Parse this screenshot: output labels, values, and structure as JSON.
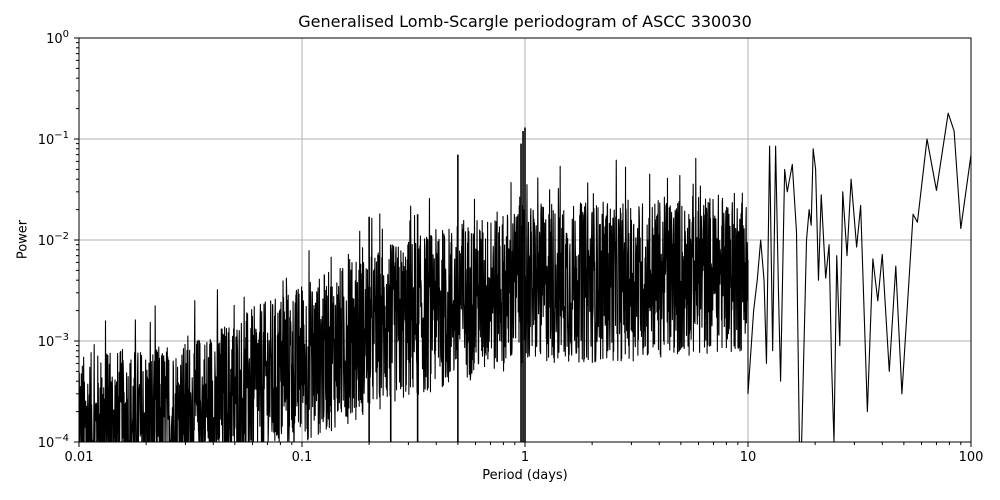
{
  "chart_data": {
    "type": "line",
    "title": "Generalised Lomb-Scargle periodogram of ASCC 330030",
    "xlabel": "Period (days)",
    "ylabel": "Power",
    "xscale": "log",
    "yscale": "log",
    "xlim": [
      0.01,
      100
    ],
    "ylim": [
      0.0001,
      1
    ],
    "grid": true,
    "x_ticks": [
      "0.01",
      "0.1",
      "1",
      "10",
      "100"
    ],
    "y_ticks": [
      {
        "base": "10",
        "exp": "0",
        "value": 1
      },
      {
        "base": "10",
        "exp": "−1",
        "value": 0.1
      },
      {
        "base": "10",
        "exp": "−2",
        "value": 0.01
      },
      {
        "base": "10",
        "exp": "−3",
        "value": 0.001
      },
      {
        "base": "10",
        "exp": "−4",
        "value": 0.0001
      }
    ],
    "line_color": "#000000",
    "grid_color": "#b0b0b0",
    "noise_envelope": [
      {
        "period": 0.01,
        "power": 0.0003
      },
      {
        "period": 0.03,
        "power": 0.0004
      },
      {
        "period": 0.1,
        "power": 0.0015
      },
      {
        "period": 0.2,
        "power": 0.003
      },
      {
        "period": 0.5,
        "power": 0.006
      },
      {
        "period": 1.0,
        "power": 0.009
      },
      {
        "period": 3.0,
        "power": 0.01
      },
      {
        "period": 8.0,
        "power": 0.012
      }
    ],
    "notable_peaks": [
      {
        "period": 0.2,
        "power": 0.017
      },
      {
        "period": 0.25,
        "power": 0.009
      },
      {
        "period": 0.33,
        "power": 0.018
      },
      {
        "period": 0.5,
        "power": 0.07
      },
      {
        "period": 0.98,
        "power": 0.12
      },
      {
        "period": 1.0,
        "power": 0.13
      },
      {
        "period": 0.96,
        "power": 0.09
      },
      {
        "period": 12.5,
        "power": 0.085
      },
      {
        "period": 13.3,
        "power": 0.085
      },
      {
        "period": 15.0,
        "power": 0.05
      },
      {
        "period": 15.8,
        "power": 0.056
      },
      {
        "period": 19.5,
        "power": 0.08
      },
      {
        "period": 21.3,
        "power": 0.028
      },
      {
        "period": 26.5,
        "power": 0.03
      },
      {
        "period": 29.0,
        "power": 0.04
      },
      {
        "period": 32.0,
        "power": 0.022
      },
      {
        "period": 38.0,
        "power": 0.007
      },
      {
        "period": 41.5,
        "power": 0.007
      },
      {
        "period": 46.0,
        "power": 0.0055
      },
      {
        "period": 55.0,
        "power": 0.018
      },
      {
        "period": 64.0,
        "power": 0.1
      },
      {
        "period": 79.0,
        "power": 0.18
      },
      {
        "period": 100.0,
        "power": 0.07
      }
    ],
    "long_period_curve": [
      [
        10.0,
        0.0003
      ],
      [
        10.6,
        0.002
      ],
      [
        11.0,
        0.004
      ],
      [
        11.4,
        0.01
      ],
      [
        11.8,
        0.004
      ],
      [
        12.1,
        0.0006
      ],
      [
        12.5,
        0.085
      ],
      [
        12.9,
        0.0008
      ],
      [
        13.3,
        0.085
      ],
      [
        13.7,
        0.003
      ],
      [
        14.0,
        0.0004
      ],
      [
        14.6,
        0.05
      ],
      [
        15.0,
        0.03
      ],
      [
        15.8,
        0.056
      ],
      [
        16.5,
        0.012
      ],
      [
        17.0,
        0.0001
      ],
      [
        17.4,
        0.0001
      ],
      [
        18.3,
        0.01
      ],
      [
        18.8,
        0.02
      ],
      [
        19.2,
        0.014
      ],
      [
        19.6,
        0.08
      ],
      [
        20.1,
        0.05
      ],
      [
        20.7,
        0.004
      ],
      [
        21.3,
        0.028
      ],
      [
        22.3,
        0.0042
      ],
      [
        23.1,
        0.009
      ],
      [
        23.7,
        0.0006
      ],
      [
        24.3,
        0.0001
      ],
      [
        25.0,
        0.007
      ],
      [
        25.8,
        0.0009
      ],
      [
        26.6,
        0.03
      ],
      [
        27.8,
        0.007
      ],
      [
        29.0,
        0.04
      ],
      [
        30.7,
        0.0085
      ],
      [
        32.0,
        0.022
      ],
      [
        34.3,
        0.0002
      ],
      [
        36.3,
        0.0065
      ],
      [
        38.2,
        0.0025
      ],
      [
        40.0,
        0.0072
      ],
      [
        43.0,
        0.0005
      ],
      [
        46.0,
        0.0055
      ],
      [
        49.0,
        0.0003
      ],
      [
        55.0,
        0.018
      ],
      [
        57.5,
        0.015
      ],
      [
        63.5,
        0.1
      ],
      [
        70.0,
        0.031
      ],
      [
        79.0,
        0.18
      ],
      [
        84.0,
        0.12
      ],
      [
        90.0,
        0.013
      ],
      [
        100.0,
        0.07
      ]
    ]
  }
}
